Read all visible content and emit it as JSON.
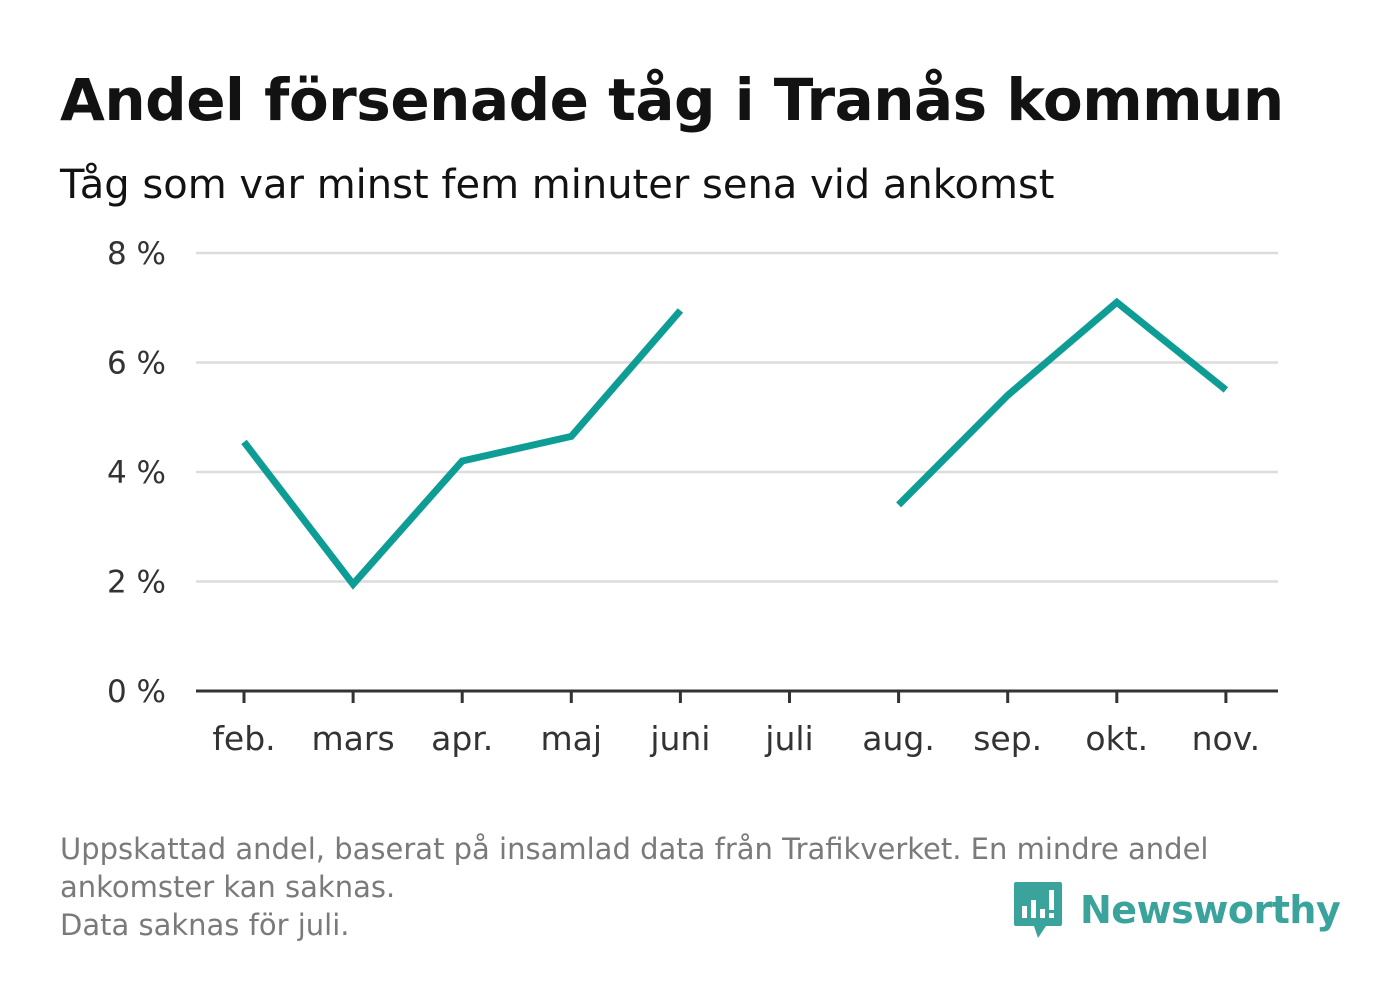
{
  "header": {
    "title": "Andel försenade tåg i Tranås kommun",
    "subtitle": "Tåg som var minst fem minuter sena vid ankomst"
  },
  "chart_data": {
    "type": "line",
    "categories": [
      "feb.",
      "mars",
      "apr.",
      "maj",
      "juni",
      "juli",
      "aug.",
      "sep.",
      "okt.",
      "nov."
    ],
    "series": [
      {
        "values": [
          4.55,
          1.95,
          4.2,
          4.65,
          6.95,
          null,
          3.4,
          5.4,
          7.1,
          5.5
        ],
        "color": "#0e9d95"
      }
    ],
    "y_ticks": [
      0,
      2,
      4,
      6,
      8
    ],
    "y_tick_labels": [
      "0 %",
      "2 %",
      "4 %",
      "6 %",
      "8 %"
    ],
    "ylim": [
      0,
      8
    ],
    "grid": true,
    "gridline_color": "#dcdcdc",
    "axis_color": "#333333"
  },
  "footnote": {
    "line1": "Uppskattad andel, baserat på insamlad data från Trafikverket. En mindre andel",
    "line2": "ankomster kan saknas.",
    "line3": "Data saknas för juli."
  },
  "logo": {
    "text": "Newsworthy",
    "icon": "newsworthy-chart-bubble-icon",
    "color": "#3aa39c"
  }
}
